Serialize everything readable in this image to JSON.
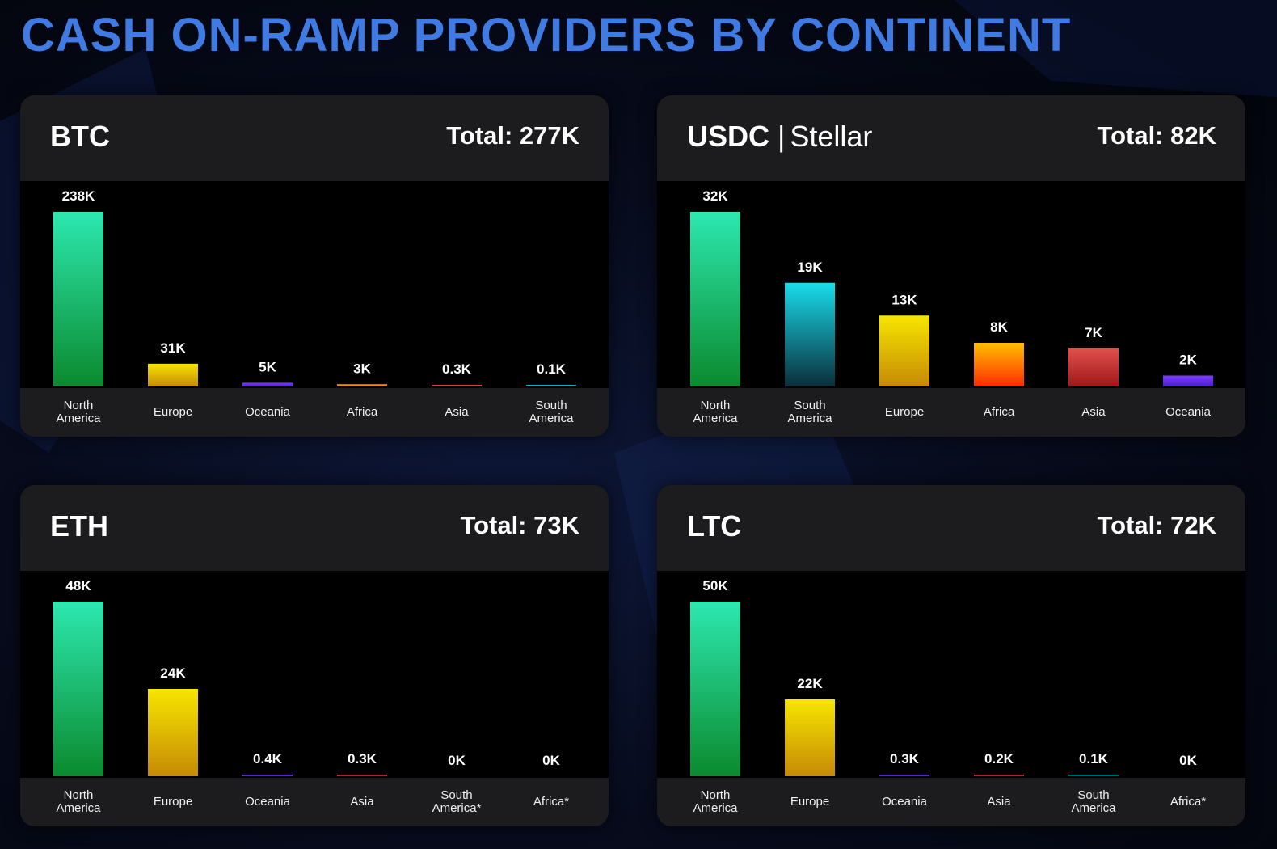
{
  "title": "CASH ON-RAMP PROVIDERS BY CONTINENT",
  "colors": {
    "title": "#3f7be2",
    "panel": "#1c1c1e",
    "plot_bg": "#000000"
  },
  "panels": [
    {
      "coin": "BTC",
      "subtitle": "",
      "total": "Total: 277K",
      "chart_data": {
        "type": "bar",
        "categories": [
          "North America",
          "Europe",
          "Oceania",
          "Africa",
          "Asia",
          "South America"
        ],
        "values": [
          238,
          31,
          5,
          3,
          0.3,
          0.1
        ],
        "labels": [
          "238K",
          "31K",
          "5K",
          "3K",
          "0.3K",
          "0.1K"
        ],
        "colors": [
          "green",
          "yellow",
          "purple",
          "orange",
          "red",
          "cyan"
        ],
        "ymax": 238
      }
    },
    {
      "coin": "USDC",
      "subtitle": "Stellar",
      "total": "Total: 82K",
      "chart_data": {
        "type": "bar",
        "categories": [
          "North America",
          "South America",
          "Europe",
          "Africa",
          "Asia",
          "Oceania"
        ],
        "values": [
          32,
          19,
          13,
          8,
          7,
          2
        ],
        "labels": [
          "32K",
          "19K",
          "13K",
          "8K",
          "7K",
          "2K"
        ],
        "colors": [
          "green",
          "cyan",
          "yellow",
          "orange",
          "red",
          "purple"
        ],
        "ymax": 32
      }
    },
    {
      "coin": "ETH",
      "subtitle": "",
      "total": "Total: 73K",
      "chart_data": {
        "type": "bar",
        "categories": [
          "North America",
          "Europe",
          "Oceania",
          "Asia",
          "South America*",
          "Africa*"
        ],
        "values": [
          48,
          24,
          0.4,
          0.3,
          0,
          0
        ],
        "labels": [
          "48K",
          "24K",
          "0.4K",
          "0.3K",
          "0K",
          "0K"
        ],
        "colors": [
          "green",
          "yellow",
          "purple",
          "red",
          "cyan",
          "orange"
        ],
        "ymax": 48
      }
    },
    {
      "coin": "LTC",
      "subtitle": "",
      "total": "Total: 72K",
      "chart_data": {
        "type": "bar",
        "categories": [
          "North America",
          "Europe",
          "Oceania",
          "Asia",
          "South America",
          "Africa*"
        ],
        "values": [
          50,
          22,
          0.3,
          0.2,
          0.1,
          0
        ],
        "labels": [
          "50K",
          "22K",
          "0.3K",
          "0.2K",
          "0.1K",
          "0K"
        ],
        "colors": [
          "green",
          "yellow",
          "purple",
          "red",
          "cyan",
          "orange"
        ],
        "ymax": 50
      }
    }
  ]
}
